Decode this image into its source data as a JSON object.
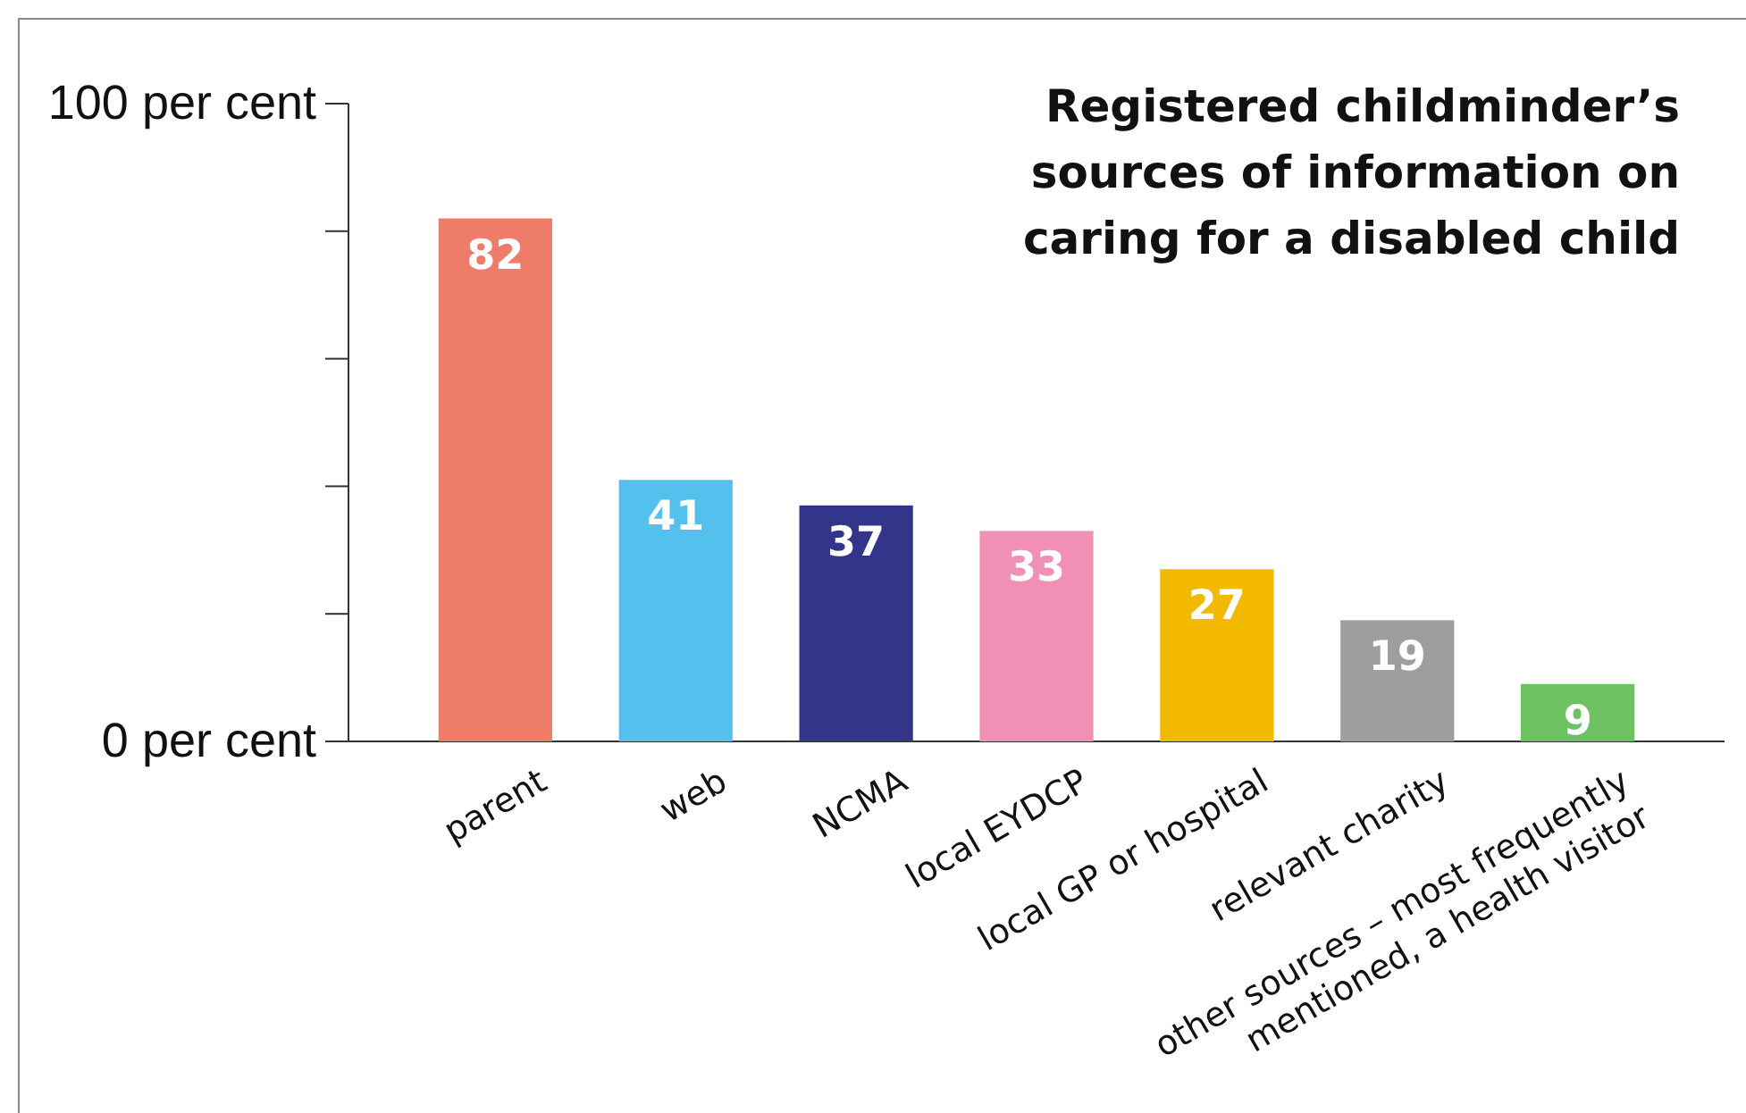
{
  "chart_data": {
    "type": "bar",
    "title": "Registered childminder’s sources of information on caring for a disabled child",
    "categories": [
      "parent",
      "web",
      "NCMA",
      "local EYDCP",
      "local GP or hospital",
      "relevant charity",
      "other sources – most frequently\nmentioned, a health visitor"
    ],
    "values": [
      82,
      41,
      37,
      33,
      27,
      19,
      9
    ],
    "colors": [
      "#ef7b69",
      "#53c0ee",
      "#32358a",
      "#ef90b4",
      "#f3b800",
      "#9e9e9e",
      "#6cc160"
    ],
    "ylim": [
      0,
      100
    ],
    "yticks": [
      {
        "value": 0,
        "label": "0 per cent"
      },
      {
        "value": 20,
        "label": null
      },
      {
        "value": 40,
        "label": null
      },
      {
        "value": 60,
        "label": null
      },
      {
        "value": 80,
        "label": null
      },
      {
        "value": 100,
        "label": "100 per cent"
      }
    ],
    "data_labels": true,
    "grid": false
  }
}
